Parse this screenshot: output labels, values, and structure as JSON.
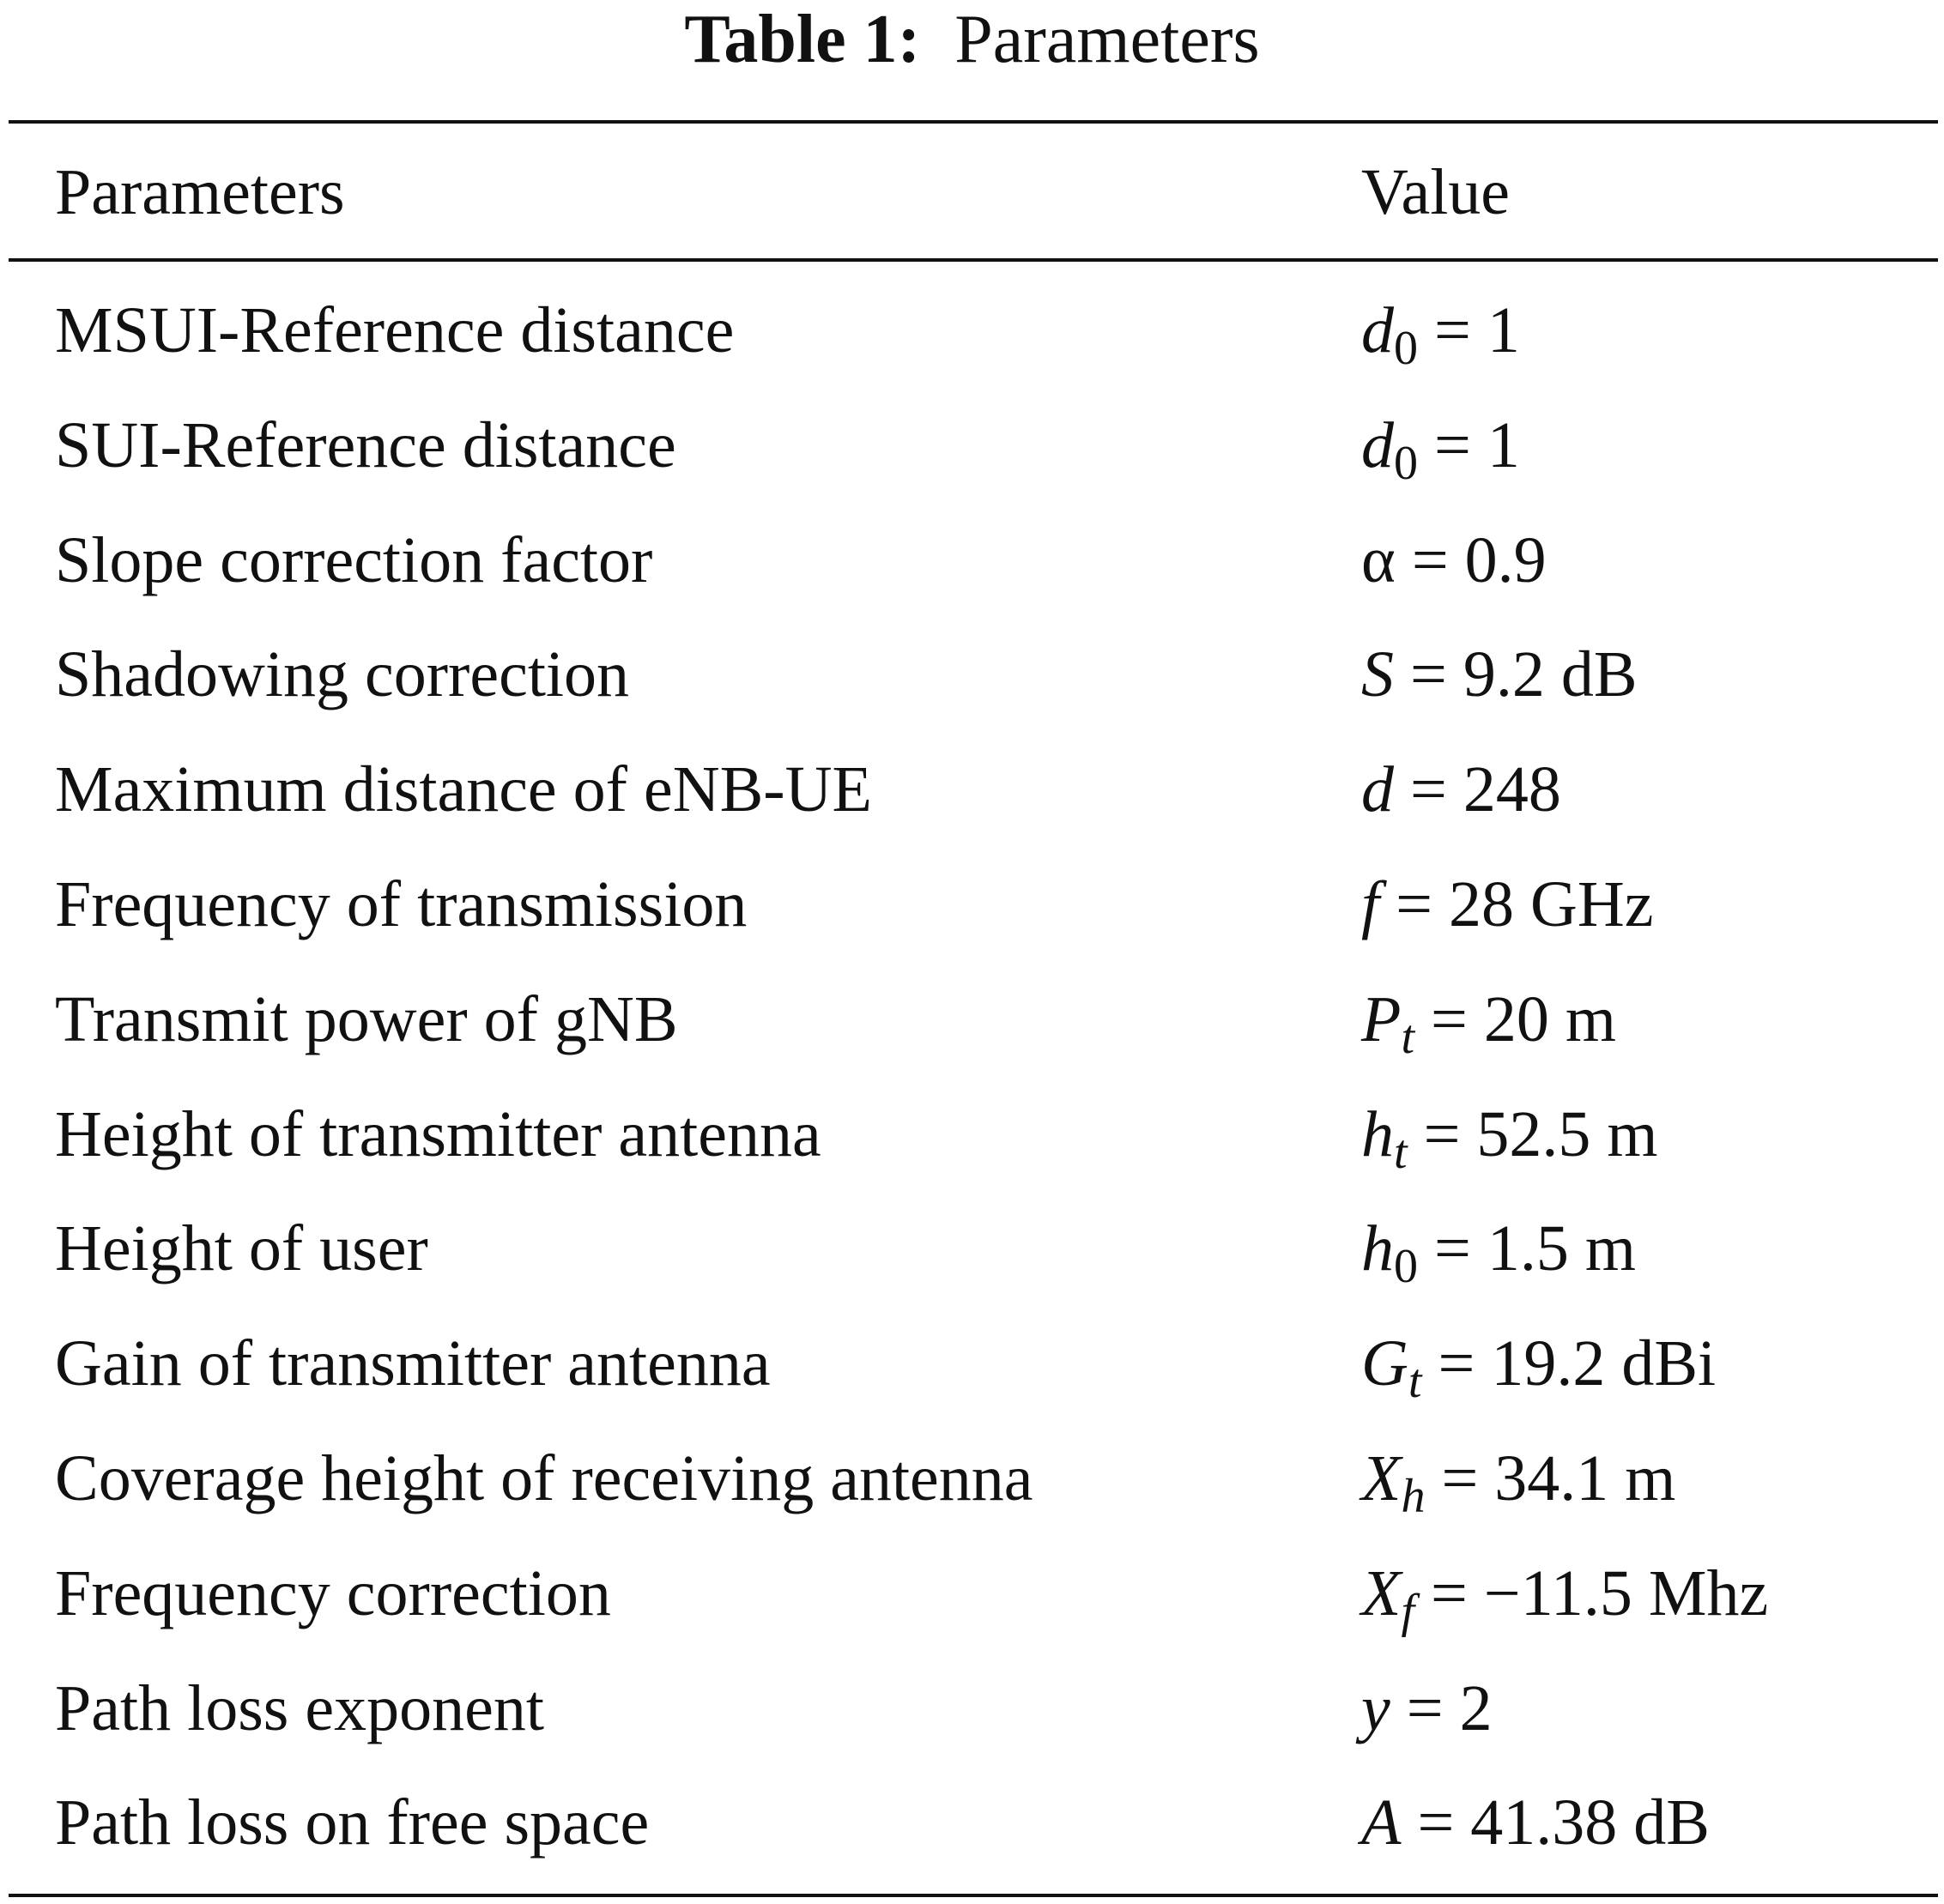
{
  "title": {
    "label": "Table 1:",
    "text": "Parameters"
  },
  "header": {
    "col1": "Parameters",
    "col2": "Value"
  },
  "rows": [
    {
      "param": "MSUI-Reference distance",
      "var": "d",
      "sub": "0",
      "sub_italic": false,
      "rest": " = 1"
    },
    {
      "param": "SUI-Reference distance",
      "var": "d",
      "sub": "0",
      "sub_italic": false,
      "rest": " = 1"
    },
    {
      "param": "Slope correction factor",
      "var": "",
      "sub": "",
      "sub_italic": false,
      "rest": "α = 0.9"
    },
    {
      "param": "Shadowing correction",
      "var": "S",
      "sub": "",
      "sub_italic": false,
      "rest": " = 9.2 dB"
    },
    {
      "param": "Maximum distance of eNB-UE",
      "var": "d",
      "sub": "",
      "sub_italic": false,
      "rest": " = 248"
    },
    {
      "param": "Frequency of transmission",
      "var": "f",
      "sub": "",
      "sub_italic": false,
      "rest": " = 28 GHz"
    },
    {
      "param": "Transmit power of gNB",
      "var": "P",
      "sub": "t",
      "sub_italic": true,
      "rest": " = 20 m"
    },
    {
      "param": "Height of transmitter antenna",
      "var": "h",
      "sub": "t",
      "sub_italic": true,
      "rest": " = 52.5 m"
    },
    {
      "param": "Height of user",
      "var": "h",
      "sub": "0",
      "sub_italic": false,
      "rest": " = 1.5 m"
    },
    {
      "param": "Gain of transmitter antenna",
      "var": "G",
      "sub": "t",
      "sub_italic": true,
      "rest": " = 19.2 dBi"
    },
    {
      "param": "Coverage height of receiving antenna",
      "var": "X",
      "sub": "h",
      "sub_italic": true,
      "rest": " = 34.1 m"
    },
    {
      "param": "Frequency correction",
      "var": "X",
      "sub": "f",
      "sub_italic": true,
      "rest": " = −11.5 Mhz"
    },
    {
      "param": "Path loss exponent",
      "var": "y",
      "sub": "",
      "sub_italic": false,
      "rest": " = 2"
    },
    {
      "param": "Path loss on free space",
      "var": "A",
      "sub": "",
      "sub_italic": false,
      "rest": " = 41.38 dB"
    }
  ]
}
